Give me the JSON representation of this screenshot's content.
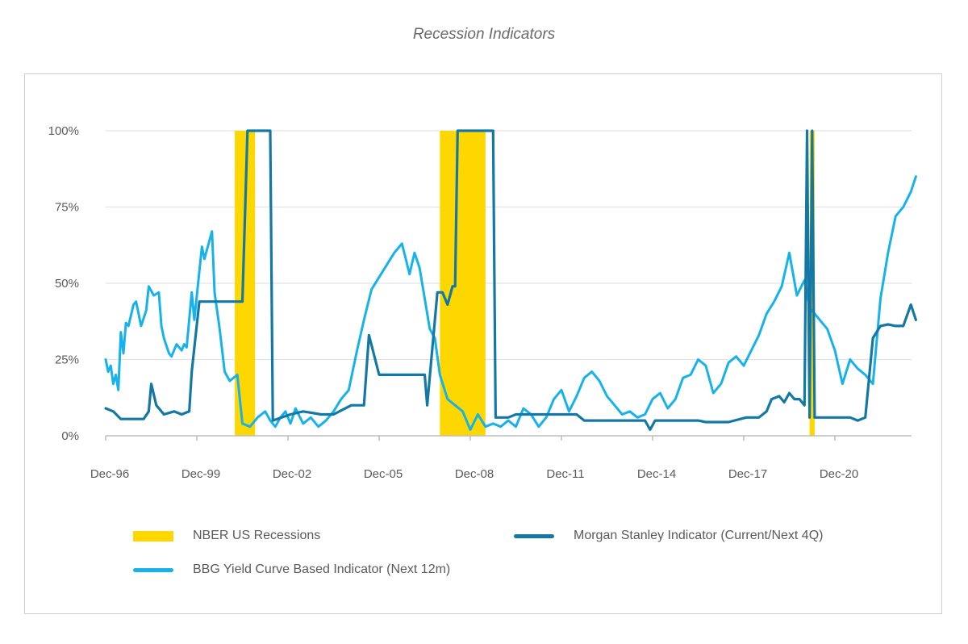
{
  "colors": {
    "recession": "#FFD700",
    "morgan_stanley": "#1478A6",
    "bbg": "#17B1EC",
    "grid": "#e3e3e3",
    "axis": "#bdbdbd"
  },
  "chart_data": {
    "type": "line",
    "title": "Recession Indicators",
    "xlabel": "",
    "ylabel": "",
    "x_axis": {
      "type": "date",
      "range": [
        "1996-12",
        "2023-09"
      ],
      "tick_labels": [
        "Dec-96",
        "Dec-99",
        "Dec-02",
        "Dec-05",
        "Dec-08",
        "Dec-11",
        "Dec-14",
        "Dec-17",
        "Dec-20"
      ],
      "tick_dates": [
        "1996-12",
        "1999-12",
        "2002-12",
        "2005-12",
        "2008-12",
        "2011-12",
        "2014-12",
        "2017-12",
        "2020-12"
      ]
    },
    "y_axis": {
      "range": [
        0,
        100
      ],
      "tick_values": [
        0,
        25,
        50,
        75,
        100
      ],
      "tick_labels": [
        "0%",
        "25%",
        "50%",
        "75%",
        "100%"
      ]
    },
    "grid": true,
    "legend_placement": "bottom",
    "recessions": {
      "name": "NBER US Recessions",
      "periods": [
        {
          "start": "2001-03",
          "end": "2001-11"
        },
        {
          "start": "2007-12",
          "end": "2009-06"
        },
        {
          "start": "2020-02",
          "end": "2020-04"
        }
      ]
    },
    "series": [
      {
        "name": "Morgan Stanley Indicator (Current/Next 4Q)",
        "points": [
          [
            "1996-12",
            9
          ],
          [
            "1997-03",
            8
          ],
          [
            "1997-06",
            5.5
          ],
          [
            "1998-03",
            5.5
          ],
          [
            "1998-05",
            8
          ],
          [
            "1998-06",
            17
          ],
          [
            "1998-08",
            10
          ],
          [
            "1998-11",
            7
          ],
          [
            "1999-03",
            8
          ],
          [
            "1999-06",
            7
          ],
          [
            "1999-09",
            8
          ],
          [
            "1999-10",
            21
          ],
          [
            "2000-01",
            44
          ],
          [
            "2001-06",
            44
          ],
          [
            "2001-08",
            100
          ],
          [
            "2002-05",
            100
          ],
          [
            "2002-06",
            5
          ],
          [
            "2003-01",
            7
          ],
          [
            "2003-06",
            8
          ],
          [
            "2004-01",
            7
          ],
          [
            "2004-06",
            7
          ],
          [
            "2005-01",
            10
          ],
          [
            "2005-06",
            10
          ],
          [
            "2005-08",
            33
          ],
          [
            "2005-12",
            20
          ],
          [
            "2007-06",
            20
          ],
          [
            "2007-07",
            10
          ],
          [
            "2007-11",
            47
          ],
          [
            "2008-01",
            47
          ],
          [
            "2008-03",
            43
          ],
          [
            "2008-05",
            49
          ],
          [
            "2008-06",
            49
          ],
          [
            "2008-07",
            100
          ],
          [
            "2009-09",
            100
          ],
          [
            "2009-10",
            6
          ],
          [
            "2010-03",
            6
          ],
          [
            "2010-06",
            7
          ],
          [
            "2011-06",
            7
          ],
          [
            "2012-06",
            7
          ],
          [
            "2012-09",
            5
          ],
          [
            "2014-09",
            5
          ],
          [
            "2014-11",
            2
          ],
          [
            "2015-01",
            5
          ],
          [
            "2016-06",
            5
          ],
          [
            "2016-09",
            4.5
          ],
          [
            "2017-06",
            4.5
          ],
          [
            "2018-01",
            6
          ],
          [
            "2018-06",
            6
          ],
          [
            "2018-09",
            8
          ],
          [
            "2018-11",
            12
          ],
          [
            "2019-02",
            13
          ],
          [
            "2019-04",
            11
          ],
          [
            "2019-06",
            14
          ],
          [
            "2019-08",
            12
          ],
          [
            "2019-10",
            12
          ],
          [
            "2019-12",
            10
          ],
          [
            "2020-01",
            100
          ],
          [
            "2020-02",
            6
          ],
          [
            "2020-03",
            100
          ],
          [
            "2020-04",
            6
          ],
          [
            "2020-06",
            6
          ],
          [
            "2021-06",
            6
          ],
          [
            "2021-09",
            5
          ],
          [
            "2021-12",
            6
          ],
          [
            "2022-03",
            32
          ],
          [
            "2022-06",
            36
          ],
          [
            "2022-09",
            36.5
          ],
          [
            "2022-12",
            36
          ],
          [
            "2023-03",
            36
          ],
          [
            "2023-06",
            43
          ],
          [
            "2023-08",
            38
          ]
        ]
      },
      {
        "name": "BBG Yield Curve Based Indicator (Next 12m)",
        "points": [
          [
            "1996-12",
            25
          ],
          [
            "1997-01",
            21
          ],
          [
            "1997-02",
            23
          ],
          [
            "1997-03",
            17
          ],
          [
            "1997-04",
            20
          ],
          [
            "1997-05",
            15
          ],
          [
            "1997-06",
            34
          ],
          [
            "1997-07",
            27
          ],
          [
            "1997-08",
            37
          ],
          [
            "1997-09",
            36
          ],
          [
            "1997-11",
            43
          ],
          [
            "1997-12",
            44
          ],
          [
            "1998-02",
            36
          ],
          [
            "1998-04",
            41
          ],
          [
            "1998-05",
            49
          ],
          [
            "1998-07",
            46
          ],
          [
            "1998-09",
            47
          ],
          [
            "1998-10",
            36
          ],
          [
            "1998-11",
            32
          ],
          [
            "1999-01",
            27
          ],
          [
            "1999-02",
            26
          ],
          [
            "1999-04",
            30
          ],
          [
            "1999-06",
            28
          ],
          [
            "1999-07",
            30
          ],
          [
            "1999-08",
            29
          ],
          [
            "1999-10",
            47
          ],
          [
            "1999-11",
            38
          ],
          [
            "2000-02",
            62
          ],
          [
            "2000-03",
            58
          ],
          [
            "2000-06",
            67
          ],
          [
            "2000-07",
            47
          ],
          [
            "2000-09",
            35
          ],
          [
            "2000-11",
            21
          ],
          [
            "2001-01",
            18
          ],
          [
            "2001-04",
            20
          ],
          [
            "2001-06",
            4
          ],
          [
            "2001-09",
            3
          ],
          [
            "2001-12",
            6
          ],
          [
            "2002-03",
            8
          ],
          [
            "2002-05",
            5
          ],
          [
            "2002-07",
            3
          ],
          [
            "2002-09",
            6
          ],
          [
            "2002-11",
            8
          ],
          [
            "2003-01",
            4
          ],
          [
            "2003-03",
            9
          ],
          [
            "2003-06",
            4
          ],
          [
            "2003-09",
            6
          ],
          [
            "2003-12",
            3
          ],
          [
            "2004-03",
            5
          ],
          [
            "2004-06",
            8
          ],
          [
            "2004-09",
            12
          ],
          [
            "2004-12",
            15
          ],
          [
            "2005-03",
            27
          ],
          [
            "2005-06",
            38
          ],
          [
            "2005-09",
            48
          ],
          [
            "2005-12",
            52
          ],
          [
            "2006-03",
            56
          ],
          [
            "2006-06",
            60
          ],
          [
            "2006-09",
            63
          ],
          [
            "2006-12",
            53
          ],
          [
            "2007-02",
            60
          ],
          [
            "2007-04",
            55
          ],
          [
            "2007-06",
            45
          ],
          [
            "2007-08",
            35
          ],
          [
            "2007-10",
            32
          ],
          [
            "2007-12",
            20
          ],
          [
            "2008-03",
            12
          ],
          [
            "2008-06",
            10
          ],
          [
            "2008-09",
            8
          ],
          [
            "2008-12",
            2
          ],
          [
            "2009-03",
            7
          ],
          [
            "2009-06",
            3
          ],
          [
            "2009-09",
            4
          ],
          [
            "2009-12",
            3
          ],
          [
            "2010-03",
            5
          ],
          [
            "2010-06",
            3
          ],
          [
            "2010-09",
            9
          ],
          [
            "2010-12",
            7
          ],
          [
            "2011-03",
            3
          ],
          [
            "2011-06",
            6
          ],
          [
            "2011-09",
            12
          ],
          [
            "2011-12",
            15
          ],
          [
            "2012-03",
            8
          ],
          [
            "2012-06",
            13
          ],
          [
            "2012-09",
            19
          ],
          [
            "2012-12",
            21
          ],
          [
            "2013-03",
            18
          ],
          [
            "2013-06",
            13
          ],
          [
            "2013-09",
            10
          ],
          [
            "2013-12",
            7
          ],
          [
            "2014-03",
            8
          ],
          [
            "2014-06",
            6
          ],
          [
            "2014-09",
            7
          ],
          [
            "2014-12",
            12
          ],
          [
            "2015-03",
            14
          ],
          [
            "2015-06",
            9
          ],
          [
            "2015-09",
            12
          ],
          [
            "2015-12",
            19
          ],
          [
            "2016-03",
            20
          ],
          [
            "2016-06",
            25
          ],
          [
            "2016-09",
            23
          ],
          [
            "2016-12",
            14
          ],
          [
            "2017-03",
            17
          ],
          [
            "2017-06",
            24
          ],
          [
            "2017-09",
            26
          ],
          [
            "2017-12",
            23
          ],
          [
            "2018-03",
            28
          ],
          [
            "2018-06",
            33
          ],
          [
            "2018-09",
            40
          ],
          [
            "2018-12",
            44
          ],
          [
            "2019-03",
            49
          ],
          [
            "2019-06",
            60
          ],
          [
            "2019-09",
            46
          ],
          [
            "2019-12",
            51
          ],
          [
            "2020-02",
            42
          ],
          [
            "2020-06",
            38
          ],
          [
            "2020-09",
            35
          ],
          [
            "2020-12",
            28
          ],
          [
            "2021-03",
            17
          ],
          [
            "2021-06",
            25
          ],
          [
            "2021-09",
            22
          ],
          [
            "2021-12",
            20
          ],
          [
            "2022-03",
            17
          ],
          [
            "2022-06",
            45
          ],
          [
            "2022-09",
            60
          ],
          [
            "2022-12",
            72
          ],
          [
            "2023-03",
            75
          ],
          [
            "2023-06",
            80
          ],
          [
            "2023-08",
            85
          ]
        ]
      }
    ]
  }
}
